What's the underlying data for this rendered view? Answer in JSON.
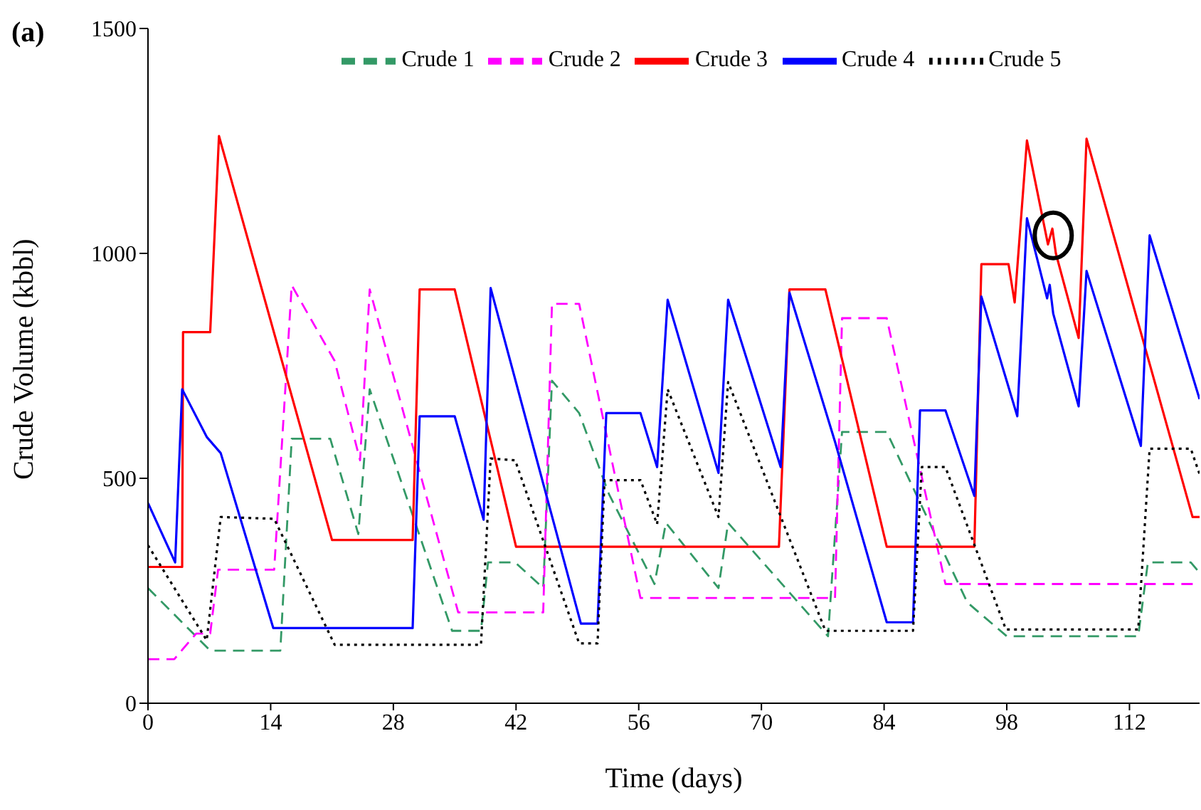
{
  "chart_data": {
    "type": "line",
    "xlabel": "Time (days)",
    "ylabel": "Crude Volume (kbbl)",
    "annotations": [
      "(a)"
    ],
    "xlim": [
      0,
      120
    ],
    "xticks": [
      0,
      14,
      28,
      42,
      56,
      70,
      84,
      98,
      112
    ],
    "ylim": [
      0,
      1500
    ],
    "yticks": [
      0,
      500,
      1000,
      1500
    ],
    "legend": "top",
    "marker": "none",
    "series": [
      {
        "name": "Crude 1",
        "color": "#339966",
        "line_style": "dashed",
        "x": [
          0,
          7.1,
          15.1,
          16.4,
          20.8,
          24,
          25.3,
          34.7,
          38,
          38.8,
          41.9,
          45.1,
          46.1,
          49.2,
          52.6,
          57.8,
          59.1,
          65.1,
          66.2,
          77.6,
          79.2,
          84.3,
          93.5,
          98,
          113,
          114.1,
          119,
          120
        ],
        "values": [
          256,
          117,
          117,
          588,
          588,
          376,
          698,
          161,
          161,
          313,
          313,
          256,
          717,
          645,
          465,
          265,
          401,
          256,
          401,
          149,
          603,
          603,
          224,
          149,
          149,
          313,
          313,
          290
        ]
      },
      {
        "name": "Crude 2",
        "color": "#ff00ff",
        "line_style": "dashed",
        "x": [
          0,
          3,
          5.5,
          7.1,
          8,
          14.4,
          16.4,
          21.3,
          24.2,
          25.3,
          35.4,
          45.1,
          46.1,
          49.2,
          56.2,
          78.4,
          79.2,
          84.3,
          91,
          120
        ],
        "values": [
          98,
          98,
          155,
          155,
          297,
          297,
          929,
          761,
          540,
          920,
          202,
          202,
          888,
          888,
          234,
          234,
          856,
          856,
          265,
          265
        ]
      },
      {
        "name": "Crude 3",
        "color": "#ff0000",
        "line_style": "solid",
        "x": [
          0,
          3.9,
          4,
          7.1,
          8.1,
          21,
          30.2,
          31,
          35,
          42,
          72,
          73.2,
          77.3,
          84.3,
          94.3,
          95.1,
          98.2,
          98.9,
          100.3,
          102.7,
          103.2,
          103.6,
          106.2,
          107.1,
          119.2,
          120
        ],
        "values": [
          303,
          303,
          825,
          825,
          1261,
          363,
          363,
          920,
          920,
          348,
          348,
          920,
          920,
          348,
          348,
          976,
          976,
          891,
          1251,
          1020,
          1055,
          1000,
          812,
          1255,
          414,
          414
        ]
      },
      {
        "name": "Crude 4",
        "color": "#0000ff",
        "line_style": "solid",
        "x": [
          0,
          3.1,
          3.9,
          6.7,
          8.3,
          14.3,
          30.2,
          31,
          35,
          38.3,
          39.1,
          49.4,
          51.3,
          52.3,
          56.2,
          58.1,
          59.3,
          65.1,
          66.2,
          72.2,
          73.2,
          78.4,
          84.3,
          87.3,
          88.1,
          91,
          94.3,
          95.1,
          99.2,
          100.3,
          102.6,
          102.9,
          103.3,
          106.2,
          107.1,
          113.3,
          114.3,
          120
        ],
        "values": [
          445,
          313,
          698,
          592,
          556,
          167,
          167,
          638,
          638,
          408,
          923,
          177,
          177,
          645,
          645,
          525,
          897,
          512,
          897,
          525,
          913,
          581,
          180,
          180,
          651,
          651,
          461,
          904,
          638,
          1078,
          900,
          930,
          866,
          660,
          961,
          572,
          1040,
          676
        ]
      },
      {
        "name": "Crude 5",
        "color": "#000000",
        "line_style": "dotted",
        "x": [
          0,
          6.7,
          8.3,
          14.4,
          21.3,
          38,
          39.1,
          41.9,
          49.2,
          51.3,
          52.1,
          56.2,
          58.1,
          59.3,
          65.1,
          66.2,
          77.3,
          87.3,
          88.3,
          91,
          97.9,
          113,
          114.3,
          119,
          120
        ],
        "values": [
          351,
          140,
          414,
          410,
          130,
          130,
          544,
          540,
          133,
          133,
          496,
          496,
          398,
          698,
          414,
          714,
          161,
          161,
          525,
          525,
          164,
          164,
          566,
          566,
          509
        ]
      }
    ]
  }
}
